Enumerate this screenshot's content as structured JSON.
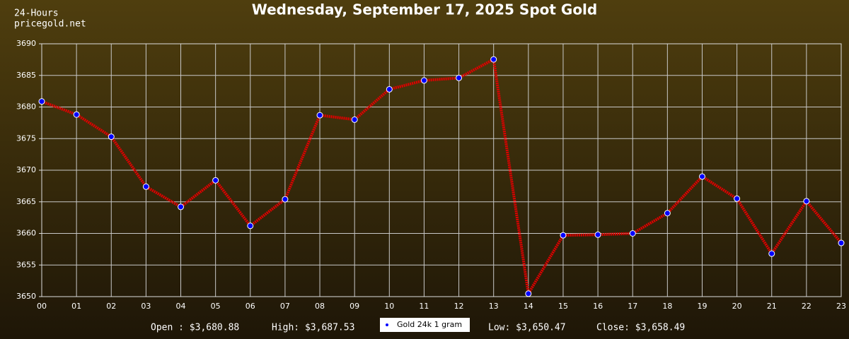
{
  "chart_data": {
    "type": "line",
    "title": "Wednesday, September 17, 2025 Spot Gold",
    "corner_text": [
      "24-Hours",
      "pricegold.net"
    ],
    "categories": [
      "00",
      "01",
      "02",
      "03",
      "04",
      "05",
      "06",
      "07",
      "08",
      "09",
      "10",
      "11",
      "12",
      "13",
      "14",
      "15",
      "16",
      "17",
      "18",
      "19",
      "20",
      "21",
      "22",
      "23"
    ],
    "series": [
      {
        "name": "Gold 24k 1 gram",
        "color": "#e00000",
        "marker_color": "#0000ff",
        "values": [
          3680.88,
          3678.8,
          3675.3,
          3667.4,
          3664.2,
          3668.4,
          3661.2,
          3665.4,
          3678.7,
          3678.0,
          3682.8,
          3684.2,
          3684.6,
          3687.53,
          3650.47,
          3659.7,
          3659.8,
          3660.0,
          3663.2,
          3669.0,
          3665.5,
          3656.8,
          3665.1,
          3658.49
        ]
      }
    ],
    "ylim": [
      3650,
      3690
    ],
    "yticks": [
      3650,
      3655,
      3660,
      3665,
      3670,
      3675,
      3680,
      3685,
      3690
    ],
    "grid": true,
    "stats": [
      "Open : $3,680.88",
      "High: $3,687.53",
      "Low: $3,650.47",
      "Close: $3,658.49"
    ]
  }
}
